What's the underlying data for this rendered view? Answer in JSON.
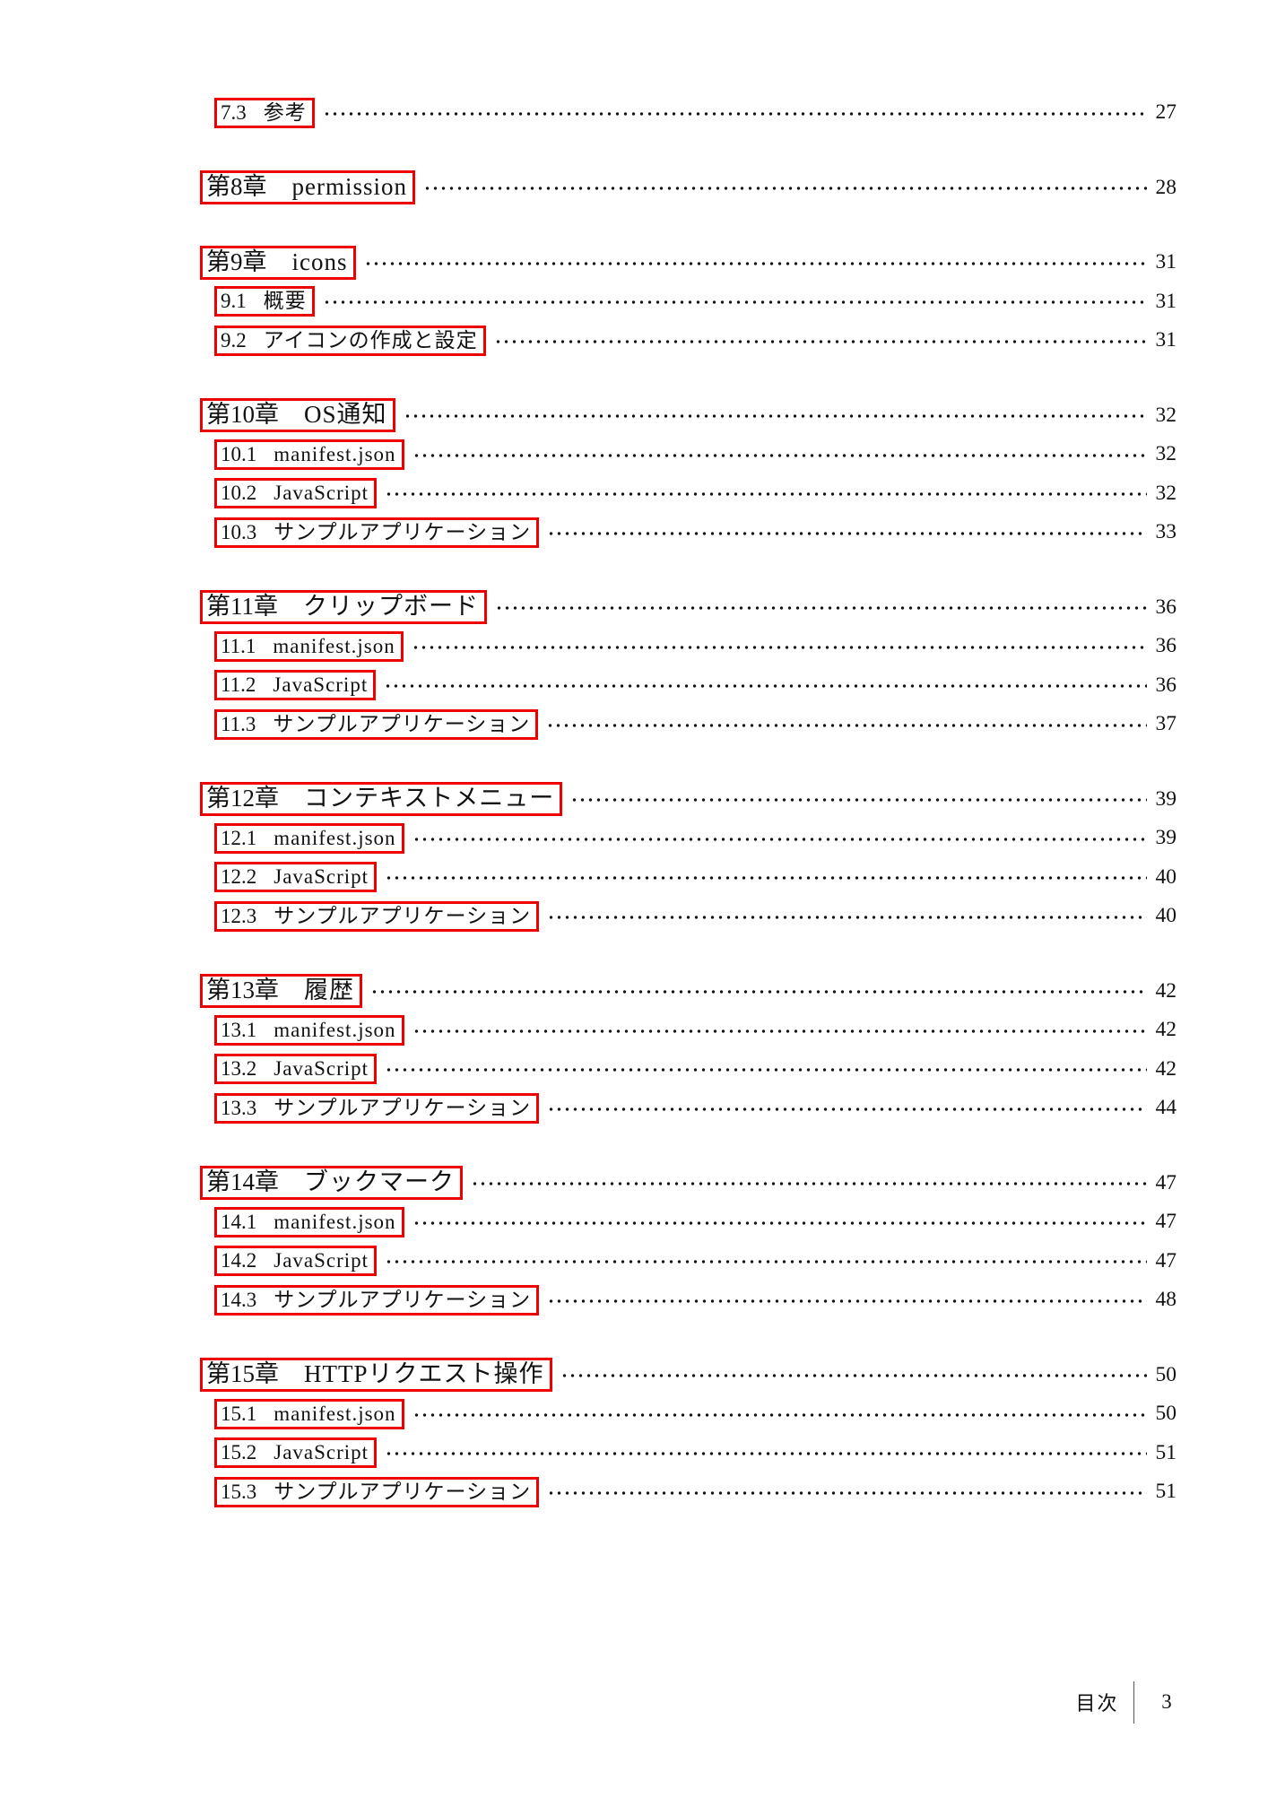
{
  "colors": {
    "link_box_border": "#ee0000",
    "text": "#111111",
    "footer_divider": "#555555",
    "background": "#ffffff"
  },
  "footer": {
    "label": "目次",
    "page": "3"
  },
  "toc": {
    "blocks": [
      {
        "items": [
          {
            "level": "section",
            "num": "7.3",
            "title": "参考",
            "page": "27"
          }
        ]
      },
      {
        "items": [
          {
            "level": "chapter",
            "num": "第8章",
            "title": "permission",
            "page": "28"
          }
        ]
      },
      {
        "items": [
          {
            "level": "chapter",
            "num": "第9章",
            "title": "icons",
            "page": "31"
          },
          {
            "level": "section",
            "num": "9.1",
            "title": "概要",
            "page": "31"
          },
          {
            "level": "section",
            "num": "9.2",
            "title": "アイコンの作成と設定",
            "page": "31"
          }
        ]
      },
      {
        "items": [
          {
            "level": "chapter",
            "num": "第10章",
            "title": "OS通知",
            "page": "32"
          },
          {
            "level": "section",
            "num": "10.1",
            "title": "manifest.json",
            "page": "32"
          },
          {
            "level": "section",
            "num": "10.2",
            "title": "JavaScript",
            "page": "32"
          },
          {
            "level": "section",
            "num": "10.3",
            "title": "サンプルアプリケーション",
            "page": "33"
          }
        ]
      },
      {
        "items": [
          {
            "level": "chapter",
            "num": "第11章",
            "title": "クリップボード",
            "page": "36"
          },
          {
            "level": "section",
            "num": "11.1",
            "title": "manifest.json",
            "page": "36"
          },
          {
            "level": "section",
            "num": "11.2",
            "title": "JavaScript",
            "page": "36"
          },
          {
            "level": "section",
            "num": "11.3",
            "title": "サンプルアプリケーション",
            "page": "37"
          }
        ]
      },
      {
        "items": [
          {
            "level": "chapter",
            "num": "第12章",
            "title": "コンテキストメニュー",
            "page": "39"
          },
          {
            "level": "section",
            "num": "12.1",
            "title": "manifest.json",
            "page": "39"
          },
          {
            "level": "section",
            "num": "12.2",
            "title": "JavaScript",
            "page": "40"
          },
          {
            "level": "section",
            "num": "12.3",
            "title": "サンプルアプリケーション",
            "page": "40"
          }
        ]
      },
      {
        "items": [
          {
            "level": "chapter",
            "num": "第13章",
            "title": "履歴",
            "page": "42"
          },
          {
            "level": "section",
            "num": "13.1",
            "title": "manifest.json",
            "page": "42"
          },
          {
            "level": "section",
            "num": "13.2",
            "title": "JavaScript",
            "page": "42"
          },
          {
            "level": "section",
            "num": "13.3",
            "title": "サンプルアプリケーション",
            "page": "44"
          }
        ]
      },
      {
        "items": [
          {
            "level": "chapter",
            "num": "第14章",
            "title": "ブックマーク",
            "page": "47"
          },
          {
            "level": "section",
            "num": "14.1",
            "title": "manifest.json",
            "page": "47"
          },
          {
            "level": "section",
            "num": "14.2",
            "title": "JavaScript",
            "page": "47"
          },
          {
            "level": "section",
            "num": "14.3",
            "title": "サンプルアプリケーション",
            "page": "48"
          }
        ]
      },
      {
        "items": [
          {
            "level": "chapter",
            "num": "第15章",
            "title": "HTTPリクエスト操作",
            "page": "50"
          },
          {
            "level": "section",
            "num": "15.1",
            "title": "manifest.json",
            "page": "50"
          },
          {
            "level": "section",
            "num": "15.2",
            "title": "JavaScript",
            "page": "51"
          },
          {
            "level": "section",
            "num": "15.3",
            "title": "サンプルアプリケーション",
            "page": "51"
          }
        ]
      }
    ]
  }
}
